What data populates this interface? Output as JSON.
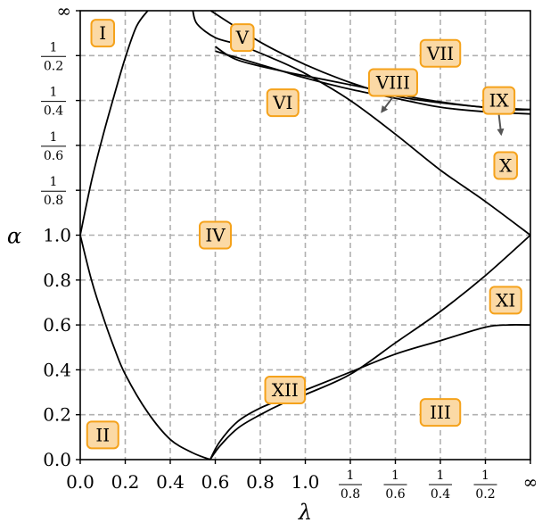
{
  "chart_data": {
    "type": "line",
    "title": "",
    "xlabel": "λ",
    "ylabel": "α",
    "xlim": [
      0,
      "∞"
    ],
    "ylim": [
      0,
      "∞"
    ],
    "grid": true,
    "grid_style": "dashed",
    "x_scale_note": "linear 0..1, then reciprocal 1/λ: 1.25, 1.67, 2.5, 5, ∞",
    "y_scale_note": "linear 0..1, then reciprocal 1/α: 1.25, 1.67, 2.5, 5, ∞",
    "x_ticks": [
      {
        "t": 0.0,
        "label": "0.0"
      },
      {
        "t": 0.2,
        "label": "0.2"
      },
      {
        "t": 0.4,
        "label": "0.4"
      },
      {
        "t": 0.6,
        "label": "0.6"
      },
      {
        "t": 0.8,
        "label": "0.8"
      },
      {
        "t": 1.0,
        "label": "1.0"
      },
      {
        "t": 1.2,
        "num": "1",
        "den": "0.8"
      },
      {
        "t": 1.4,
        "num": "1",
        "den": "0.6"
      },
      {
        "t": 1.6,
        "num": "1",
        "den": "0.4"
      },
      {
        "t": 1.8,
        "num": "1",
        "den": "0.2"
      },
      {
        "t": 2.0,
        "label": "∞"
      }
    ],
    "y_ticks": [
      {
        "t": 0.0,
        "label": "0.0"
      },
      {
        "t": 0.2,
        "label": "0.2"
      },
      {
        "t": 0.4,
        "label": "0.4"
      },
      {
        "t": 0.6,
        "label": "0.6"
      },
      {
        "t": 0.8,
        "label": "0.8"
      },
      {
        "t": 1.0,
        "label": "1.0"
      },
      {
        "t": 1.2,
        "num": "1",
        "den": "0.8"
      },
      {
        "t": 1.4,
        "num": "1",
        "den": "0.6"
      },
      {
        "t": 1.6,
        "num": "1",
        "den": "0.4"
      },
      {
        "t": 1.8,
        "num": "1",
        "den": "0.2"
      },
      {
        "t": 2.0,
        "label": "∞"
      }
    ],
    "curves": [
      {
        "points": [
          [
            0.0,
            1.0
          ],
          [
            0.05,
            1.24
          ],
          [
            0.1,
            1.44
          ],
          [
            0.15,
            1.62
          ],
          [
            0.2,
            1.79
          ],
          [
            0.25,
            1.93
          ],
          [
            0.3,
            2.0
          ]
        ]
      },
      {
        "points": [
          [
            0.0,
            1.0
          ],
          [
            0.05,
            0.8
          ],
          [
            0.1,
            0.64
          ],
          [
            0.15,
            0.5
          ],
          [
            0.2,
            0.38
          ],
          [
            0.3,
            0.21
          ],
          [
            0.4,
            0.09
          ],
          [
            0.5,
            0.03
          ],
          [
            0.577,
            0.0
          ]
        ]
      },
      {
        "points": [
          [
            0.577,
            0.0
          ],
          [
            0.62,
            0.08
          ],
          [
            0.7,
            0.17
          ],
          [
            0.8,
            0.23
          ],
          [
            0.9,
            0.27
          ],
          [
            1.0,
            0.31
          ],
          [
            1.2,
            0.39
          ],
          [
            1.4,
            0.47
          ],
          [
            1.6,
            0.53
          ],
          [
            1.8,
            0.59
          ],
          [
            1.9,
            0.6
          ],
          [
            2.0,
            0.6
          ]
        ]
      },
      {
        "points": [
          [
            0.577,
            0.0
          ],
          [
            0.62,
            0.06
          ],
          [
            0.7,
            0.14
          ],
          [
            0.8,
            0.2
          ],
          [
            0.9,
            0.25
          ],
          [
            1.0,
            0.29
          ],
          [
            1.2,
            0.38
          ],
          [
            1.4,
            0.52
          ],
          [
            1.6,
            0.66
          ],
          [
            1.8,
            0.82
          ],
          [
            2.0,
            1.0
          ]
        ]
      },
      {
        "points": [
          [
            2.0,
            1.0
          ],
          [
            1.8,
            1.15
          ],
          [
            1.6,
            1.29
          ],
          [
            1.4,
            1.45
          ],
          [
            1.2,
            1.6
          ],
          [
            1.0,
            1.72
          ],
          [
            0.85,
            1.79
          ],
          [
            0.7,
            1.85
          ],
          [
            0.6,
            1.88
          ],
          [
            0.52,
            1.94
          ],
          [
            0.5,
            2.0
          ]
        ]
      },
      {
        "points": [
          [
            0.6,
            1.82
          ],
          [
            0.7,
            1.79
          ],
          [
            0.8,
            1.76
          ],
          [
            0.9,
            1.73
          ],
          [
            1.0,
            1.7
          ],
          [
            1.2,
            1.65
          ],
          [
            1.4,
            1.61
          ],
          [
            1.6,
            1.57
          ],
          [
            1.8,
            1.55
          ],
          [
            2.0,
            1.54
          ]
        ]
      },
      {
        "points": [
          [
            0.6,
            1.84
          ],
          [
            0.7,
            1.78
          ],
          [
            0.9,
            1.73
          ],
          [
            1.1,
            1.69
          ],
          [
            1.3,
            1.65
          ],
          [
            1.5,
            1.61
          ],
          [
            1.7,
            1.58
          ],
          [
            1.9,
            1.56
          ],
          [
            2.0,
            1.56
          ]
        ]
      },
      {
        "points": [
          [
            0.58,
            2.0
          ],
          [
            0.8,
            1.86
          ],
          [
            1.0,
            1.76
          ],
          [
            1.2,
            1.68
          ],
          [
            1.4,
            1.62
          ],
          [
            1.6,
            1.59
          ],
          [
            1.8,
            1.57
          ],
          [
            2.0,
            1.56
          ]
        ]
      }
    ],
    "region_labels": [
      {
        "label": "I",
        "x": 0.1,
        "y": 1.9
      },
      {
        "label": "II",
        "x": 0.1,
        "y": 0.11
      },
      {
        "label": "III",
        "x": 1.6,
        "y": 0.21
      },
      {
        "label": "IV",
        "x": 0.6,
        "y": 1.0
      },
      {
        "label": "V",
        "x": 0.72,
        "y": 1.88
      },
      {
        "label": "VI",
        "x": 0.9,
        "y": 1.59
      },
      {
        "label": "VII",
        "x": 1.6,
        "y": 1.81
      },
      {
        "label": "VIII",
        "x": 1.39,
        "y": 1.68
      },
      {
        "label": "IX",
        "x": 1.86,
        "y": 1.6
      },
      {
        "label": "X",
        "x": 1.89,
        "y": 1.31
      },
      {
        "label": "XI",
        "x": 1.89,
        "y": 0.71
      },
      {
        "label": "XII",
        "x": 0.91,
        "y": 0.31
      }
    ],
    "arrows": [
      {
        "from": "VIII",
        "to": [
          1.34,
          1.55
        ]
      },
      {
        "from": "IX",
        "to": [
          1.87,
          1.45
        ]
      }
    ],
    "colors": {
      "curve": "#000000",
      "grid": "#b0b0b0",
      "label_face": "#fbd9a5",
      "label_edge": "#f5a21b",
      "arrow": "#555555"
    }
  }
}
